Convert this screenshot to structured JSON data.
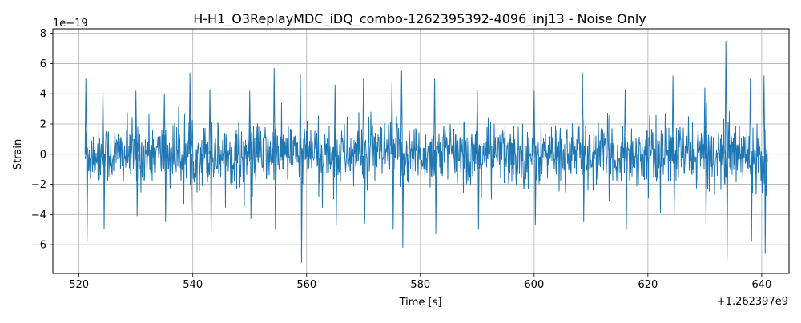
{
  "chart_data": {
    "type": "line",
    "title": "H-H1_O3ReplayMDC_iDQ_combo-1262395392-4096_inj13 - Noise Only",
    "xlabel": "Time [s]",
    "ylabel": "Strain",
    "x_offset_label": "+1.262397e9",
    "y_scale_label": "1e−19",
    "xlim": [
      515.4,
      644.8
    ],
    "ylim": [
      -7.9,
      8.3
    ],
    "xticks": [
      520,
      540,
      560,
      580,
      600,
      620,
      640
    ],
    "yticks": [
      -6,
      -4,
      -2,
      0,
      2,
      4,
      6,
      8
    ],
    "grid": true,
    "series": [
      {
        "color": "#1f77b4",
        "x_start": 521.1,
        "x_end": 641.0,
        "typical_amplitude": 2.4,
        "max": 7.5,
        "min": -7.2,
        "envelope": [
          {
            "x": 521.2,
            "max": 5.0,
            "min": -5.8
          },
          {
            "x": 524.2,
            "max": 4.3,
            "min": -5.0
          },
          {
            "x": 530.0,
            "max": 4.2,
            "min": -4.1
          },
          {
            "x": 535.0,
            "max": 4.0,
            "min": -4.5
          },
          {
            "x": 539.5,
            "max": 5.4,
            "min": -3.8
          },
          {
            "x": 543.0,
            "max": 4.3,
            "min": -5.3
          },
          {
            "x": 550.0,
            "max": 4.2,
            "min": -4.3
          },
          {
            "x": 554.3,
            "max": 5.7,
            "min": -5.0
          },
          {
            "x": 558.9,
            "max": 5.3,
            "min": -7.2
          },
          {
            "x": 565.0,
            "max": 4.6,
            "min": -4.7
          },
          {
            "x": 570.0,
            "max": 5.0,
            "min": -4.6
          },
          {
            "x": 575.0,
            "max": 4.7,
            "min": -5.0
          },
          {
            "x": 576.7,
            "max": 5.5,
            "min": -6.2
          },
          {
            "x": 582.5,
            "max": 5.0,
            "min": -5.3
          },
          {
            "x": 590.0,
            "max": 4.3,
            "min": -5.0
          },
          {
            "x": 600.0,
            "max": 4.2,
            "min": -4.7
          },
          {
            "x": 608.5,
            "max": 5.4,
            "min": -4.5
          },
          {
            "x": 616.0,
            "max": 4.3,
            "min": -5.0
          },
          {
            "x": 624.4,
            "max": 5.2,
            "min": -4.0
          },
          {
            "x": 630.0,
            "max": 4.4,
            "min": -4.6
          },
          {
            "x": 633.7,
            "max": 7.5,
            "min": -7.0
          },
          {
            "x": 638.0,
            "max": 5.0,
            "min": -5.8
          },
          {
            "x": 640.4,
            "max": 5.2,
            "min": -6.6
          }
        ]
      }
    ]
  }
}
